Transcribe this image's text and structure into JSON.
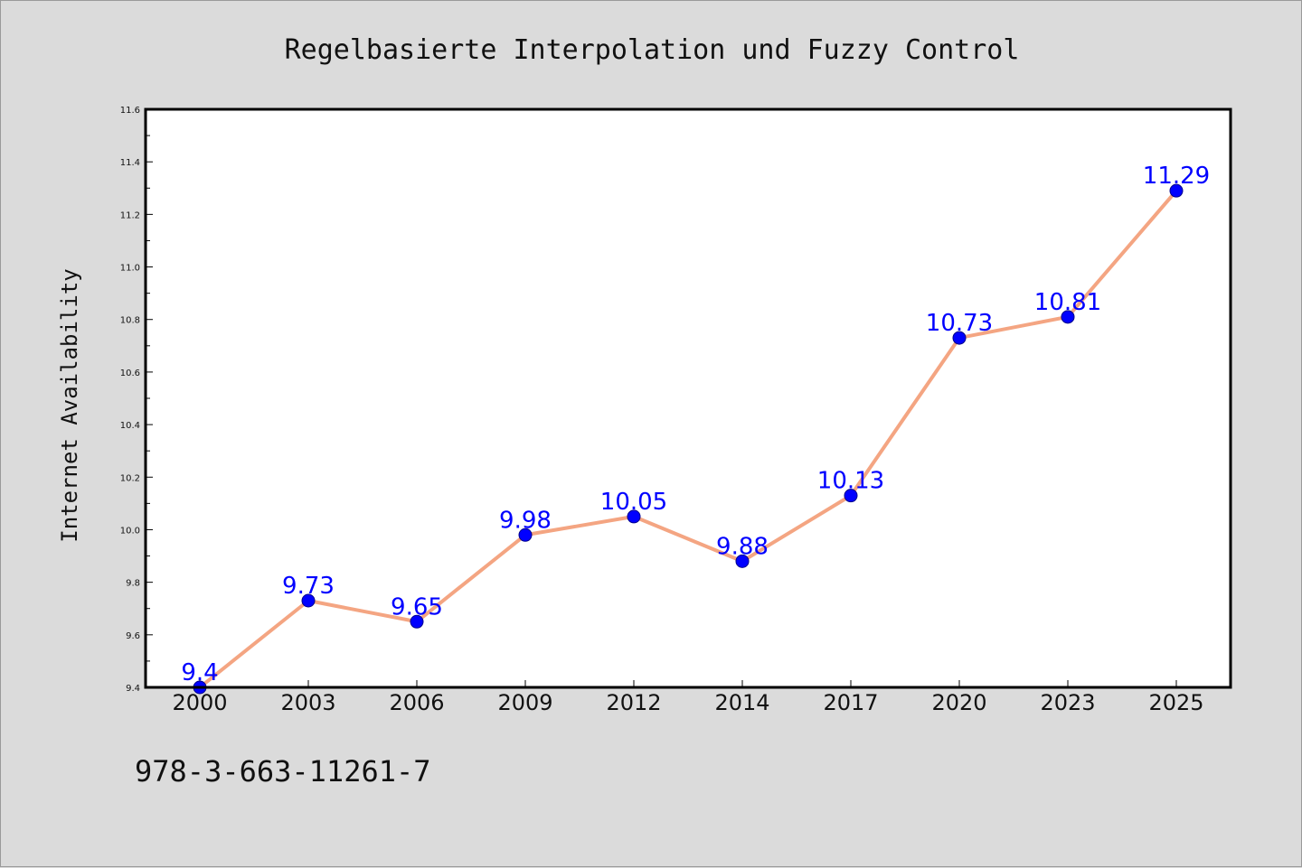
{
  "chart_data": {
    "type": "line",
    "title": "Regelbasierte Interpolation und Fuzzy Control",
    "xlabel": "",
    "ylabel": "Internet Availability",
    "categories": [
      "2000",
      "2003",
      "2006",
      "2009",
      "2012",
      "2014",
      "2017",
      "2020",
      "2023",
      "2025"
    ],
    "series": [
      {
        "values": [
          9.4,
          9.73,
          9.65,
          9.98,
          10.05,
          9.88,
          10.13,
          10.73,
          10.81,
          11.29
        ],
        "data_labels": [
          "9.4",
          "9.73",
          "9.65",
          "9.98",
          "10.05",
          "9.88",
          "10.13",
          "10.73",
          "10.81",
          "11.29"
        ]
      }
    ],
    "ylim": [
      9.4,
      11.6
    ],
    "yticks": [
      "9.4",
      "9.6",
      "9.8",
      "10.0",
      "10.2",
      "10.4",
      "10.6",
      "10.8",
      "11.0",
      "11.2",
      "11.4",
      "11.6"
    ],
    "grid": false,
    "legend": "none",
    "colors": {
      "line": "#f4a582",
      "marker": "#0000ff",
      "marker_edge": "#00008b",
      "data_label": "#0000ff",
      "plot_background": "#ffffff",
      "figure_background": "#dbdbdb"
    }
  },
  "footnote": "978-3-663-11261-7"
}
